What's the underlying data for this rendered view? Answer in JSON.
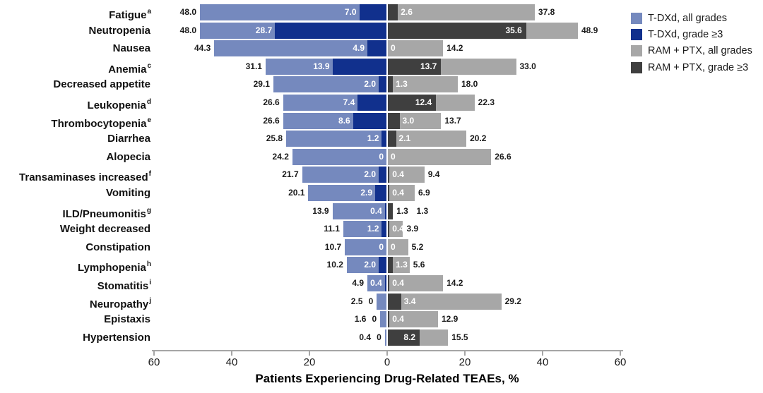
{
  "chart_data": {
    "type": "bar",
    "variant": "diverging-horizontal-nested",
    "xlabel": "Patients Experiencing Drug-Related TEAEs, %",
    "x_tick_labels": [
      "60",
      "40",
      "20",
      "0",
      "20",
      "40",
      "60"
    ],
    "x_tick_values": [
      -60,
      -40,
      -20,
      0,
      20,
      40,
      60
    ],
    "axis_range_each_side": [
      0,
      60
    ],
    "grid": false,
    "legend_position": "top-right",
    "legend": [
      {
        "name": "tdxd-all",
        "label": "T-DXd, all grades",
        "color": "#7589BE"
      },
      {
        "name": "tdxd-g3",
        "label": "T-DXd, grade ≥3",
        "color": "#11308D"
      },
      {
        "name": "ram-all",
        "label": "RAM + PTX, all grades",
        "color": "#A7A7A7"
      },
      {
        "name": "ram-g3",
        "label": "RAM + PTX, grade ≥3",
        "color": "#3F3F3F"
      }
    ],
    "series_note": "left side = T-DXd (all grades bar with grade >=3 nested at axis); right side = RAM + PTX (all grades bar with grade >=3 nested at axis)",
    "rows": [
      {
        "label": "Fatigue",
        "sup": "a",
        "tdxd_all": "48.0",
        "tdxd_g3": "7.0",
        "ram_g3": "2.6",
        "ram_all": "37.8"
      },
      {
        "label": "Neutropenia",
        "sup": "",
        "tdxd_all": "48.0",
        "tdxd_g3": "28.7",
        "ram_g3": "35.6",
        "ram_all": "48.9"
      },
      {
        "label": "Nausea",
        "sup": "",
        "tdxd_all": "44.3",
        "tdxd_g3": "4.9",
        "ram_g3": "0",
        "ram_all": "14.2"
      },
      {
        "label": "Anemia",
        "sup": "c",
        "tdxd_all": "31.1",
        "tdxd_g3": "13.9",
        "ram_g3": "13.7",
        "ram_all": "33.0"
      },
      {
        "label": "Decreased appetite",
        "sup": "",
        "tdxd_all": "29.1",
        "tdxd_g3": "2.0",
        "ram_g3": "1.3",
        "ram_all": "18.0"
      },
      {
        "label": "Leukopenia",
        "sup": "d",
        "tdxd_all": "26.6",
        "tdxd_g3": "7.4",
        "ram_g3": "12.4",
        "ram_all": "22.3"
      },
      {
        "label": "Thrombocytopenia",
        "sup": "e",
        "tdxd_all": "26.6",
        "tdxd_g3": "8.6",
        "ram_g3": "3.0",
        "ram_all": "13.7"
      },
      {
        "label": "Diarrhea",
        "sup": "",
        "tdxd_all": "25.8",
        "tdxd_g3": "1.2",
        "ram_g3": "2.1",
        "ram_all": "20.2"
      },
      {
        "label": "Alopecia",
        "sup": "",
        "tdxd_all": "24.2",
        "tdxd_g3": "0",
        "ram_g3": "0",
        "ram_all": "26.6"
      },
      {
        "label": "Transaminases increased",
        "sup": "f",
        "tdxd_all": "21.7",
        "tdxd_g3": "2.0",
        "ram_g3": "0.4",
        "ram_all": "9.4"
      },
      {
        "label": "Vomiting",
        "sup": "",
        "tdxd_all": "20.1",
        "tdxd_g3": "2.9",
        "ram_g3": "0.4",
        "ram_all": "6.9"
      },
      {
        "label": "ILD/Pneumonitis",
        "sup": "g",
        "tdxd_all": "13.9",
        "tdxd_g3": "0.4",
        "ram_g3": "1.3",
        "ram_all": "1.3"
      },
      {
        "label": "Weight decreased",
        "sup": "",
        "tdxd_all": "11.1",
        "tdxd_g3": "1.2",
        "ram_g3": "0.4",
        "ram_all": "3.9"
      },
      {
        "label": "Constipation",
        "sup": "",
        "tdxd_all": "10.7",
        "tdxd_g3": "0",
        "ram_g3": "0",
        "ram_all": "5.2"
      },
      {
        "label": "Lymphopenia",
        "sup": "h",
        "tdxd_all": "10.2",
        "tdxd_g3": "2.0",
        "ram_g3": "1.3",
        "ram_all": "5.6"
      },
      {
        "label": "Stomatitis",
        "sup": "i",
        "tdxd_all": "4.9",
        "tdxd_g3": "0.4",
        "ram_g3": "0.4",
        "ram_all": "14.2"
      },
      {
        "label": "Neuropathy",
        "sup": "j",
        "tdxd_all": "2.5",
        "tdxd_g3": "0",
        "ram_g3": "3.4",
        "ram_all": "29.2"
      },
      {
        "label": "Epistaxis",
        "sup": "",
        "tdxd_all": "1.6",
        "tdxd_g3": "0",
        "ram_g3": "0.4",
        "ram_all": "12.9"
      },
      {
        "label": "Hypertension",
        "sup": "",
        "tdxd_all": "0.4",
        "tdxd_g3": "0",
        "ram_g3": "8.2",
        "ram_all": "15.5"
      }
    ]
  }
}
